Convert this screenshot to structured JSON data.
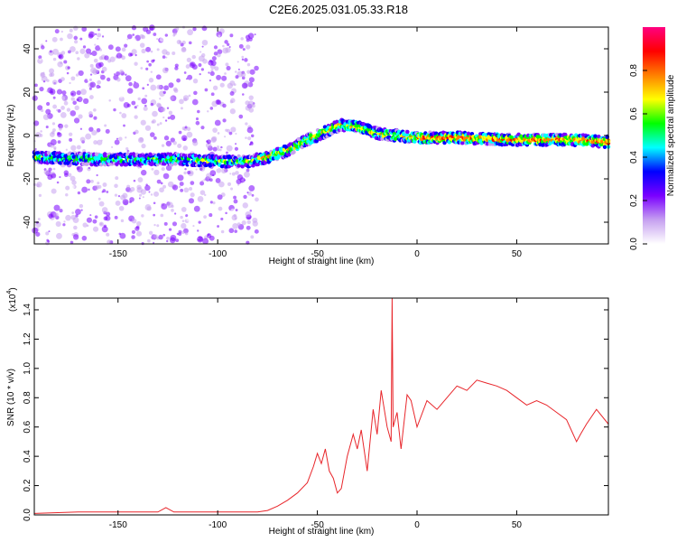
{
  "title": "C2E6.2025.031.05.33.R18",
  "chart_data": [
    {
      "type": "heatmap",
      "xlabel": "Height of straight line (km)",
      "ylabel": "Frequency (Hz)",
      "xlim": [
        -192,
        96
      ],
      "ylim": [
        -50,
        50
      ],
      "xticks": [
        -150,
        -100,
        -50,
        0,
        50
      ],
      "yticks": [
        -40,
        -20,
        0,
        20,
        40
      ],
      "colorbar": {
        "label": "Normalized spectral amplitude",
        "range": [
          0,
          1
        ],
        "ticks": [
          "0.0",
          "0.2",
          "0.4",
          "0.6",
          "0.8"
        ],
        "tick_values": [
          0,
          0.2,
          0.4,
          0.6,
          0.8
        ],
        "colors": [
          "#ffffff",
          "#c6a0f0",
          "#7a00ff",
          "#0000ff",
          "#00ffff",
          "#00ff00",
          "#ffff00",
          "#ff8000",
          "#ff0000",
          "#ff0080"
        ]
      },
      "ridge": {
        "x": [
          -192,
          -160,
          -120,
          -100,
          -85,
          -75,
          -65,
          -55,
          -45,
          -38,
          -30,
          -20,
          -10,
          0,
          20,
          50,
          80,
          96
        ],
        "y": [
          -10,
          -11,
          -11,
          -12,
          -12,
          -10,
          -7,
          -2,
          2,
          5,
          4,
          1,
          0,
          -1,
          -1,
          -2,
          -2,
          -3
        ]
      }
    },
    {
      "type": "line",
      "xlabel": "Height of straight line (km)",
      "ylabel": "SNR (10 * v/v)",
      "yscale_note": "(x10",
      "yscale_exp": "4",
      "xlim": [
        -192,
        96
      ],
      "ylim": [
        0,
        1.48
      ],
      "xticks": [
        -150,
        -100,
        -50,
        0,
        50
      ],
      "yticks": [
        "0.0",
        "0.2",
        "0.4",
        "0.6",
        "0.8",
        "1.0",
        "1.2",
        "1.4"
      ],
      "ytick_values": [
        0,
        0.2,
        0.4,
        0.6,
        0.8,
        1.0,
        1.2,
        1.4
      ],
      "color": "#e8252a",
      "series": [
        {
          "x": [
            -192,
            -170,
            -150,
            -130,
            -126,
            -122,
            -110,
            -90,
            -80,
            -75,
            -70,
            -65,
            -60,
            -55,
            -52,
            -50,
            -48,
            -46,
            -44,
            -42,
            -40,
            -38,
            -35,
            -32,
            -30,
            -28,
            -25,
            -22,
            -20,
            -18,
            -15,
            -13,
            -12.5,
            -12,
            -10,
            -8,
            -5,
            -3,
            0,
            5,
            10,
            15,
            20,
            25,
            30,
            35,
            40,
            45,
            50,
            55,
            60,
            65,
            70,
            75,
            80,
            82,
            85,
            90,
            96
          ],
          "y": [
            0.01,
            0.02,
            0.02,
            0.02,
            0.05,
            0.02,
            0.02,
            0.02,
            0.02,
            0.03,
            0.06,
            0.1,
            0.15,
            0.22,
            0.33,
            0.42,
            0.35,
            0.45,
            0.3,
            0.25,
            0.15,
            0.18,
            0.4,
            0.55,
            0.45,
            0.58,
            0.3,
            0.72,
            0.55,
            0.85,
            0.6,
            0.5,
            1.48,
            0.6,
            0.7,
            0.45,
            0.82,
            0.78,
            0.6,
            0.78,
            0.72,
            0.8,
            0.88,
            0.85,
            0.92,
            0.9,
            0.88,
            0.85,
            0.8,
            0.75,
            0.78,
            0.75,
            0.7,
            0.65,
            0.5,
            0.55,
            0.62,
            0.72,
            0.62
          ]
        }
      ]
    }
  ]
}
